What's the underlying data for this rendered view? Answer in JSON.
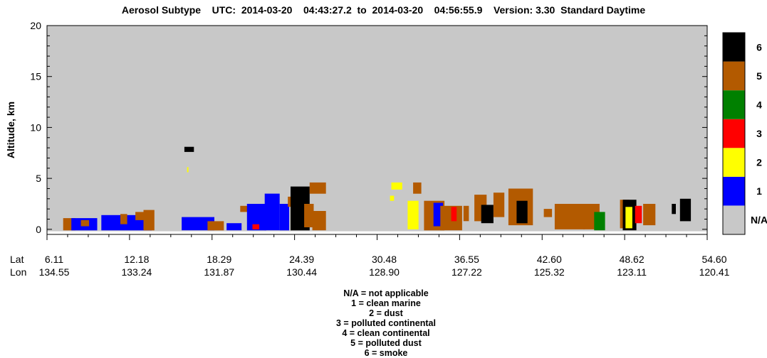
{
  "title": "Aerosol Subtype    UTC:  2014-03-20    04:43:27.2  to  2014-03-20    04:56:55.9    Version: 3.30  Standard Daytime",
  "colors": {
    "na": "#c8c8c8",
    "clean_marine": "#0000ff",
    "dust": "#ffff00",
    "polluted_continental": "#ff0000",
    "clean_continental": "#008000",
    "polluted_dust": "#b35a00",
    "smoke": "#000000"
  },
  "legend_footer": [
    "N/A = not applicable",
    "1 = clean marine",
    "2 = dust",
    "3 = polluted continental",
    "4 = clean continental",
    "5 = polluted dust",
    "6 = smoke"
  ],
  "chart_data": {
    "type": "heatmap",
    "title": "Aerosol Subtype",
    "ylabel": "Altitude, km",
    "ylim": [
      -0.5,
      20
    ],
    "yticks": [
      "0",
      "5",
      "10",
      "15",
      "20"
    ],
    "ytick_values": [
      0,
      5,
      10,
      15,
      20
    ],
    "x_row_labels": [
      "Lat",
      "Lon"
    ],
    "lat": [
      "6.11",
      "12.18",
      "18.29",
      "24.39",
      "30.48",
      "36.55",
      "42.60",
      "48.62",
      "54.60"
    ],
    "lon": [
      "134.55",
      "133.24",
      "131.87",
      "130.44",
      "128.90",
      "127.22",
      "125.32",
      "123.11",
      "120.41"
    ],
    "xlim": [
      6.11,
      54.6
    ],
    "colorbar_labels": [
      "N/A",
      "1",
      "2",
      "3",
      "4",
      "5",
      "6"
    ],
    "colorbar_colors": [
      "#c8c8c8",
      "#0000ff",
      "#ffff00",
      "#ff0000",
      "#008000",
      "#b35a00",
      "#000000"
    ],
    "regions": [
      {
        "lat": [
          7.3,
          8.2
        ],
        "alt": [
          -0.1,
          1.1
        ],
        "class": 5
      },
      {
        "lat": [
          7.9,
          9.8
        ],
        "alt": [
          -0.1,
          1.1
        ],
        "class": 1
      },
      {
        "lat": [
          8.6,
          9.2
        ],
        "alt": [
          0.3,
          0.9
        ],
        "class": 5
      },
      {
        "lat": [
          10.1,
          13.8
        ],
        "alt": [
          -0.1,
          1.4
        ],
        "class": 1
      },
      {
        "lat": [
          11.5,
          12.0
        ],
        "alt": [
          0.5,
          1.5
        ],
        "class": 5
      },
      {
        "lat": [
          12.6,
          13.3
        ],
        "alt": [
          0.9,
          1.7
        ],
        "class": 5
      },
      {
        "lat": [
          13.2,
          14.0
        ],
        "alt": [
          -0.1,
          1.9
        ],
        "class": 5
      },
      {
        "lat": [
          16.0,
          18.4
        ],
        "alt": [
          -0.1,
          1.2
        ],
        "class": 1
      },
      {
        "lat": [
          17.9,
          19.1
        ],
        "alt": [
          -0.1,
          0.8
        ],
        "class": 5
      },
      {
        "lat": [
          19.3,
          20.4
        ],
        "alt": [
          -0.1,
          0.6
        ],
        "class": 1
      },
      {
        "lat": [
          20.3,
          21.0
        ],
        "alt": [
          1.7,
          2.3
        ],
        "class": 5
      },
      {
        "lat": [
          20.8,
          22.2
        ],
        "alt": [
          -0.1,
          2.5
        ],
        "class": 1
      },
      {
        "lat": [
          21.2,
          21.7
        ],
        "alt": [
          0.0,
          0.5
        ],
        "class": 3
      },
      {
        "lat": [
          22.1,
          23.2
        ],
        "alt": [
          -0.1,
          3.5
        ],
        "class": 1
      },
      {
        "lat": [
          23.2,
          23.9
        ],
        "alt": [
          -0.1,
          2.5
        ],
        "class": 1
      },
      {
        "lat": [
          23.8,
          24.5
        ],
        "alt": [
          2.2,
          3.2
        ],
        "class": 5
      },
      {
        "lat": [
          24.0,
          25.4
        ],
        "alt": [
          -0.1,
          4.2
        ],
        "class": 6
      },
      {
        "lat": [
          25.0,
          25.7
        ],
        "alt": [
          0.2,
          2.5
        ],
        "class": 5
      },
      {
        "lat": [
          25.4,
          26.6
        ],
        "alt": [
          3.5,
          4.6
        ],
        "class": 5
      },
      {
        "lat": [
          25.6,
          26.6
        ],
        "alt": [
          -0.1,
          1.8
        ],
        "class": 5
      },
      {
        "lat": [
          16.2,
          16.9
        ],
        "alt": [
          7.6,
          8.1
        ],
        "class": 6
      },
      {
        "lat": [
          16.4,
          16.5
        ],
        "alt": [
          5.6,
          6.1
        ],
        "class": 2
      },
      {
        "lat": [
          31.4,
          32.2
        ],
        "alt": [
          3.9,
          4.6
        ],
        "class": 2
      },
      {
        "lat": [
          31.3,
          31.6
        ],
        "alt": [
          2.8,
          3.3
        ],
        "class": 2
      },
      {
        "lat": [
          32.6,
          33.4
        ],
        "alt": [
          0.0,
          2.8
        ],
        "class": 2
      },
      {
        "lat": [
          33.0,
          33.6
        ],
        "alt": [
          3.5,
          4.6
        ],
        "class": 5
      },
      {
        "lat": [
          33.8,
          35.3
        ],
        "alt": [
          -0.1,
          2.8
        ],
        "class": 5
      },
      {
        "lat": [
          34.5,
          35.2
        ],
        "alt": [
          0.3,
          2.6
        ],
        "class": 1
      },
      {
        "lat": [
          35.0,
          36.6
        ],
        "alt": [
          -0.1,
          2.3
        ],
        "class": 5
      },
      {
        "lat": [
          35.8,
          36.2
        ],
        "alt": [
          0.8,
          2.2
        ],
        "class": 3
      },
      {
        "lat": [
          36.7,
          37.1
        ],
        "alt": [
          0.8,
          2.3
        ],
        "class": 5
      },
      {
        "lat": [
          37.5,
          38.4
        ],
        "alt": [
          0.8,
          3.4
        ],
        "class": 5
      },
      {
        "lat": [
          38.0,
          38.9
        ],
        "alt": [
          0.6,
          2.4
        ],
        "class": 6
      },
      {
        "lat": [
          38.9,
          39.7
        ],
        "alt": [
          1.2,
          3.6
        ],
        "class": 5
      },
      {
        "lat": [
          40.0,
          41.8
        ],
        "alt": [
          0.4,
          4.0
        ],
        "class": 5
      },
      {
        "lat": [
          40.6,
          41.4
        ],
        "alt": [
          0.6,
          2.8
        ],
        "class": 6
      },
      {
        "lat": [
          42.6,
          43.2
        ],
        "alt": [
          1.2,
          2.0
        ],
        "class": 5
      },
      {
        "lat": [
          43.4,
          45.6
        ],
        "alt": [
          0.0,
          2.5
        ],
        "class": 5
      },
      {
        "lat": [
          45.5,
          46.7
        ],
        "alt": [
          0.0,
          2.5
        ],
        "class": 5
      },
      {
        "lat": [
          46.3,
          47.1
        ],
        "alt": [
          -0.1,
          1.7
        ],
        "class": 4
      },
      {
        "lat": [
          48.2,
          48.9
        ],
        "alt": [
          0.1,
          2.9
        ],
        "class": 5
      },
      {
        "lat": [
          48.4,
          49.4
        ],
        "alt": [
          -0.1,
          2.9
        ],
        "class": 6
      },
      {
        "lat": [
          48.6,
          49.1
        ],
        "alt": [
          0.1,
          2.2
        ],
        "class": 2
      },
      {
        "lat": [
          49.3,
          49.8
        ],
        "alt": [
          0.6,
          2.3
        ],
        "class": 3
      },
      {
        "lat": [
          49.9,
          50.8
        ],
        "alt": [
          0.4,
          2.5
        ],
        "class": 5
      },
      {
        "lat": [
          52.0,
          52.3
        ],
        "alt": [
          1.5,
          2.5
        ],
        "class": 6
      },
      {
        "lat": [
          52.6,
          53.4
        ],
        "alt": [
          0.8,
          3.0
        ],
        "class": 6
      }
    ]
  }
}
